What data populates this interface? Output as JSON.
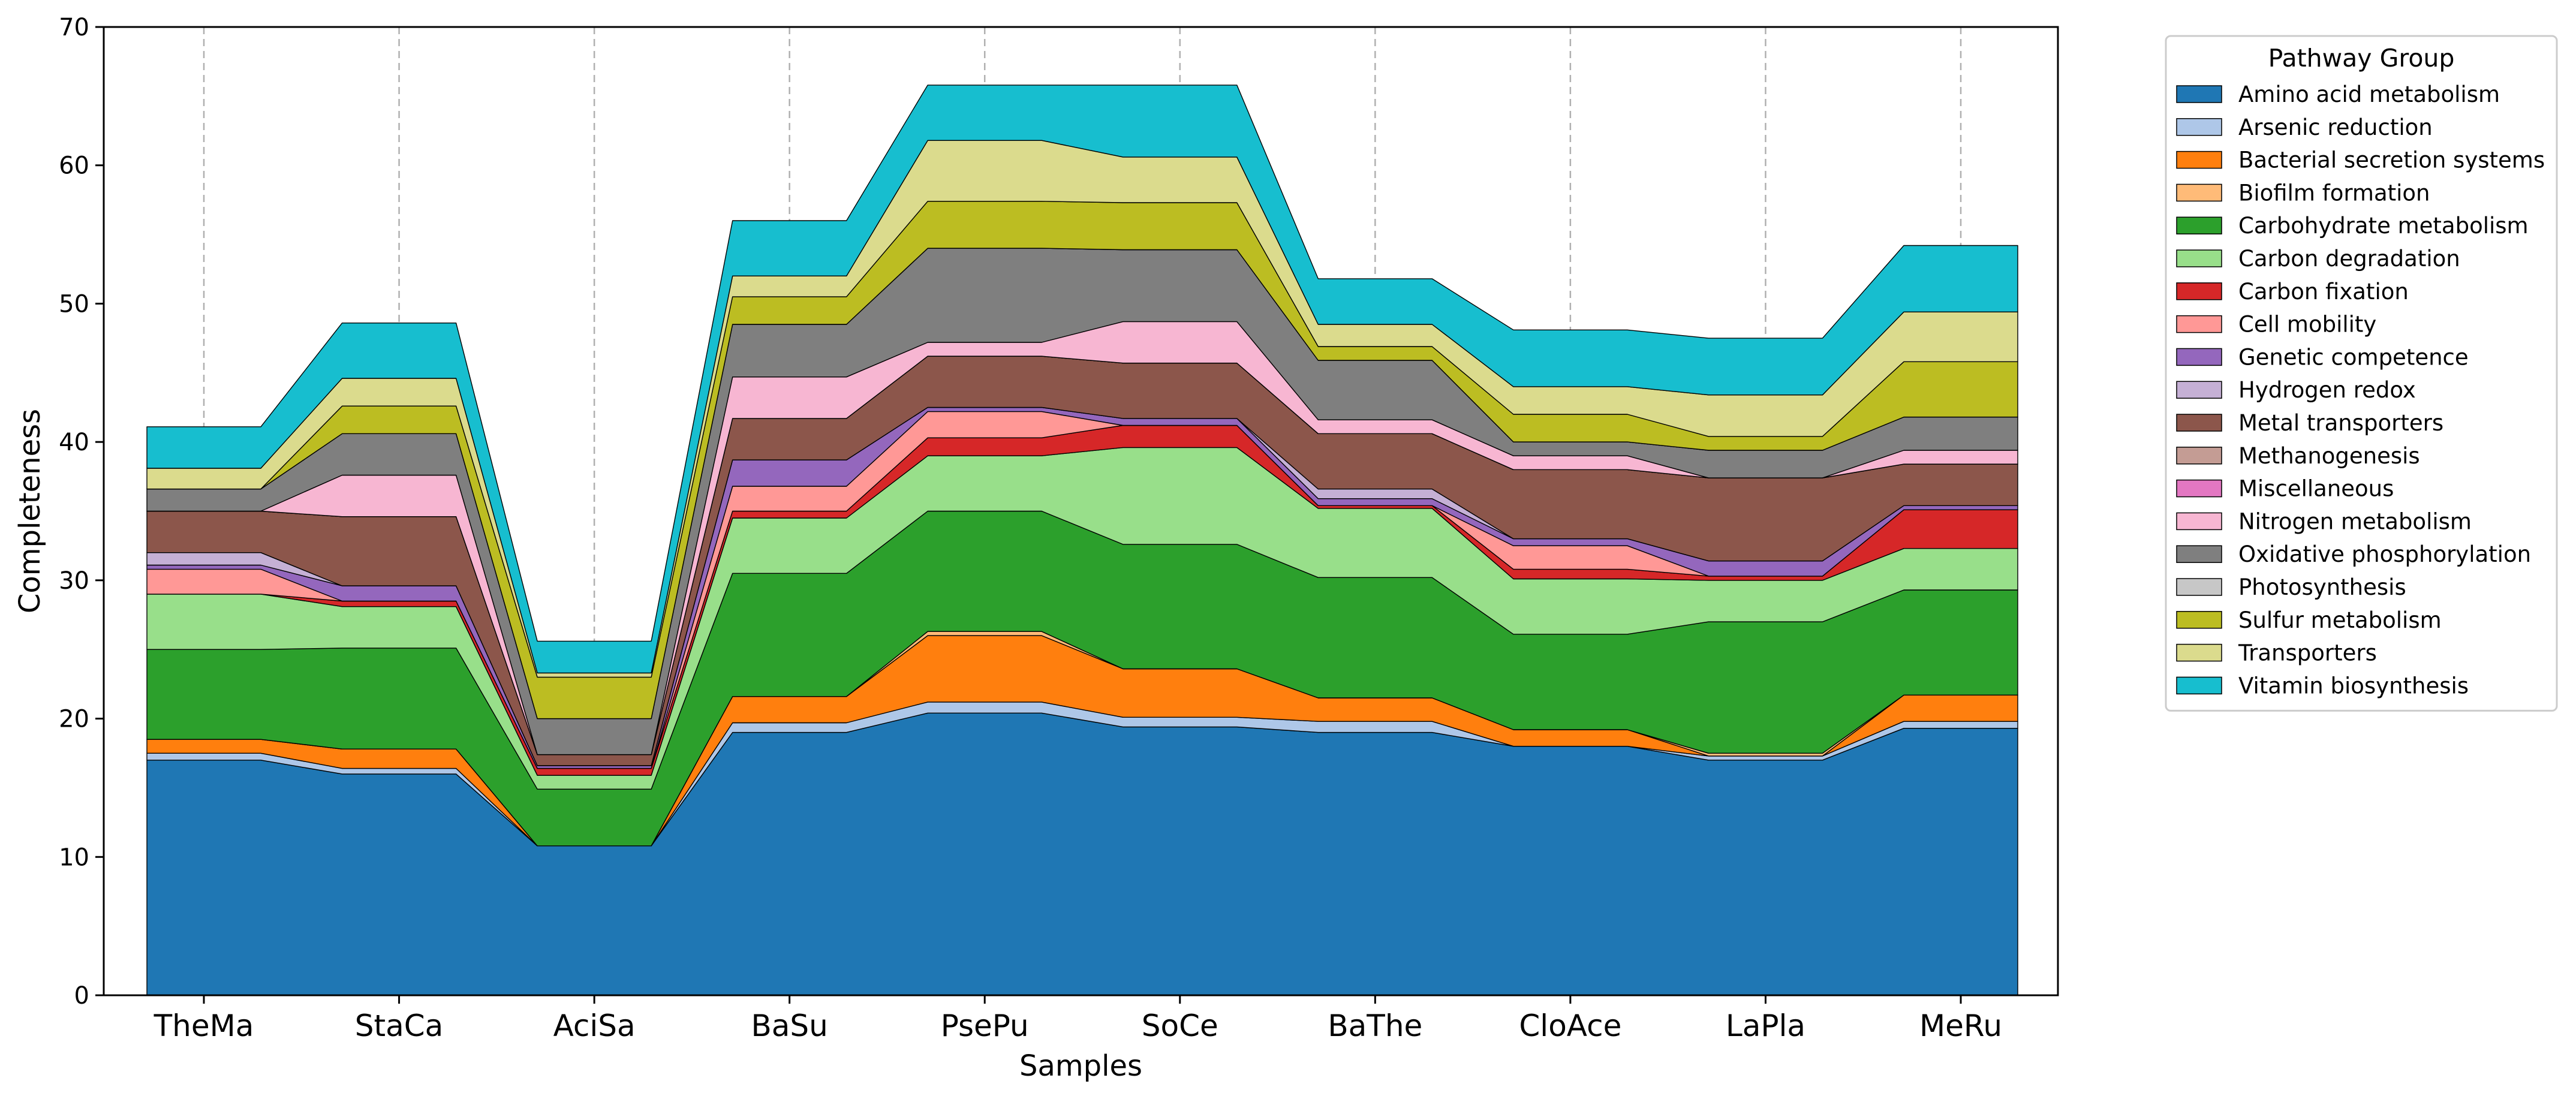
{
  "chart_data": {
    "type": "area",
    "stacked": true,
    "xlabel": "Samples",
    "ylabel": "Completeness",
    "ylim": [
      0,
      70
    ],
    "yticks": [
      0,
      10,
      20,
      30,
      40,
      50,
      60,
      70
    ],
    "grid": "vertical dashed lines at each sample",
    "legend_position": "outside right, top",
    "legend_title": "Pathway Group",
    "categories": [
      "TheMa",
      "StaCa",
      "AciSa",
      "BaSu",
      "PsePu",
      "SoCe",
      "BaThe",
      "CloAce",
      "LaPla",
      "MeRu"
    ],
    "series": [
      {
        "name": "Amino acid metabolism",
        "color": "#1f77b4",
        "values": [
          17.0,
          16.0,
          10.8,
          19.0,
          20.4,
          19.4,
          19.0,
          18.0,
          17.0,
          19.3
        ]
      },
      {
        "name": "Arsenic reduction",
        "color": "#aec7e8",
        "values": [
          0.5,
          0.4,
          0.0,
          0.7,
          0.8,
          0.7,
          0.8,
          0.0,
          0.3,
          0.5
        ]
      },
      {
        "name": "Bacterial secretion systems",
        "color": "#ff7f0e",
        "values": [
          1.0,
          1.4,
          0.0,
          1.9,
          4.8,
          3.5,
          1.7,
          1.2,
          0.0,
          1.9
        ]
      },
      {
        "name": "Biofilm formation",
        "color": "#ffbb78",
        "values": [
          0.0,
          0.0,
          0.0,
          0.0,
          0.3,
          0.0,
          0.0,
          0.0,
          0.2,
          0.0
        ]
      },
      {
        "name": "Carbohydrate metabolism",
        "color": "#2ca02c",
        "values": [
          6.5,
          7.3,
          4.1,
          8.9,
          8.7,
          9.0,
          8.7,
          6.9,
          9.5,
          7.6
        ]
      },
      {
        "name": "Carbon degradation",
        "color": "#98df8a",
        "values": [
          4.0,
          3.0,
          1.0,
          4.0,
          4.0,
          7.0,
          5.0,
          4.0,
          3.0,
          3.0
        ]
      },
      {
        "name": "Carbon fixation",
        "color": "#d62728",
        "values": [
          0.0,
          0.4,
          0.5,
          0.5,
          1.3,
          1.6,
          0.2,
          0.7,
          0.3,
          2.8
        ]
      },
      {
        "name": "Cell mobility",
        "color": "#ff9896",
        "values": [
          1.8,
          0.0,
          0.0,
          1.8,
          1.9,
          0.0,
          0.0,
          1.7,
          0.0,
          0.0
        ]
      },
      {
        "name": "Genetic competence",
        "color": "#9467bd",
        "values": [
          0.3,
          1.1,
          0.2,
          1.9,
          0.3,
          0.5,
          0.5,
          0.5,
          1.1,
          0.3
        ]
      },
      {
        "name": "Hydrogen redox",
        "color": "#c5b0d5",
        "values": [
          0.9,
          0.0,
          0.0,
          0.0,
          0.0,
          0.0,
          0.7,
          0.0,
          0.0,
          0.0
        ]
      },
      {
        "name": "Metal transporters",
        "color": "#8c564b",
        "values": [
          3.0,
          5.0,
          0.8,
          3.0,
          3.7,
          4.0,
          4.0,
          5.0,
          6.0,
          3.0
        ]
      },
      {
        "name": "Methanogenesis",
        "color": "#c49c94",
        "values": [
          0.0,
          0.0,
          0.0,
          0.0,
          0.0,
          0.0,
          0.0,
          0.0,
          0.0,
          0.0
        ]
      },
      {
        "name": "Miscellaneous",
        "color": "#e377c2",
        "values": [
          0.0,
          0.0,
          0.0,
          0.0,
          0.0,
          0.0,
          0.0,
          0.0,
          0.0,
          0.0
        ]
      },
      {
        "name": "Nitrogen metabolism",
        "color": "#f7b6d2",
        "values": [
          0.0,
          3.0,
          0.0,
          3.0,
          1.0,
          3.0,
          1.0,
          1.0,
          0.0,
          1.0
        ]
      },
      {
        "name": "Oxidative phosphorylation",
        "color": "#7f7f7f",
        "values": [
          1.6,
          3.0,
          2.6,
          3.8,
          6.8,
          5.2,
          4.3,
          1.0,
          2.0,
          2.4
        ]
      },
      {
        "name": "Photosynthesis",
        "color": "#c7c7c7",
        "values": [
          0.0,
          0.0,
          0.0,
          0.0,
          0.0,
          0.0,
          0.0,
          0.0,
          0.0,
          0.0
        ]
      },
      {
        "name": "Sulfur metabolism",
        "color": "#bcbd22",
        "values": [
          0.0,
          2.0,
          3.0,
          2.0,
          3.4,
          3.4,
          1.0,
          2.0,
          1.0,
          4.0
        ]
      },
      {
        "name": "Transporters",
        "color": "#dbdb8d",
        "values": [
          1.5,
          2.0,
          0.3,
          1.5,
          4.4,
          3.3,
          1.6,
          2.0,
          3.0,
          3.6
        ]
      },
      {
        "name": "Vitamin biosynthesis",
        "color": "#17becf",
        "values": [
          3.0,
          4.0,
          2.3,
          4.0,
          4.0,
          5.2,
          3.3,
          4.1,
          4.1,
          4.8
        ]
      }
    ]
  }
}
